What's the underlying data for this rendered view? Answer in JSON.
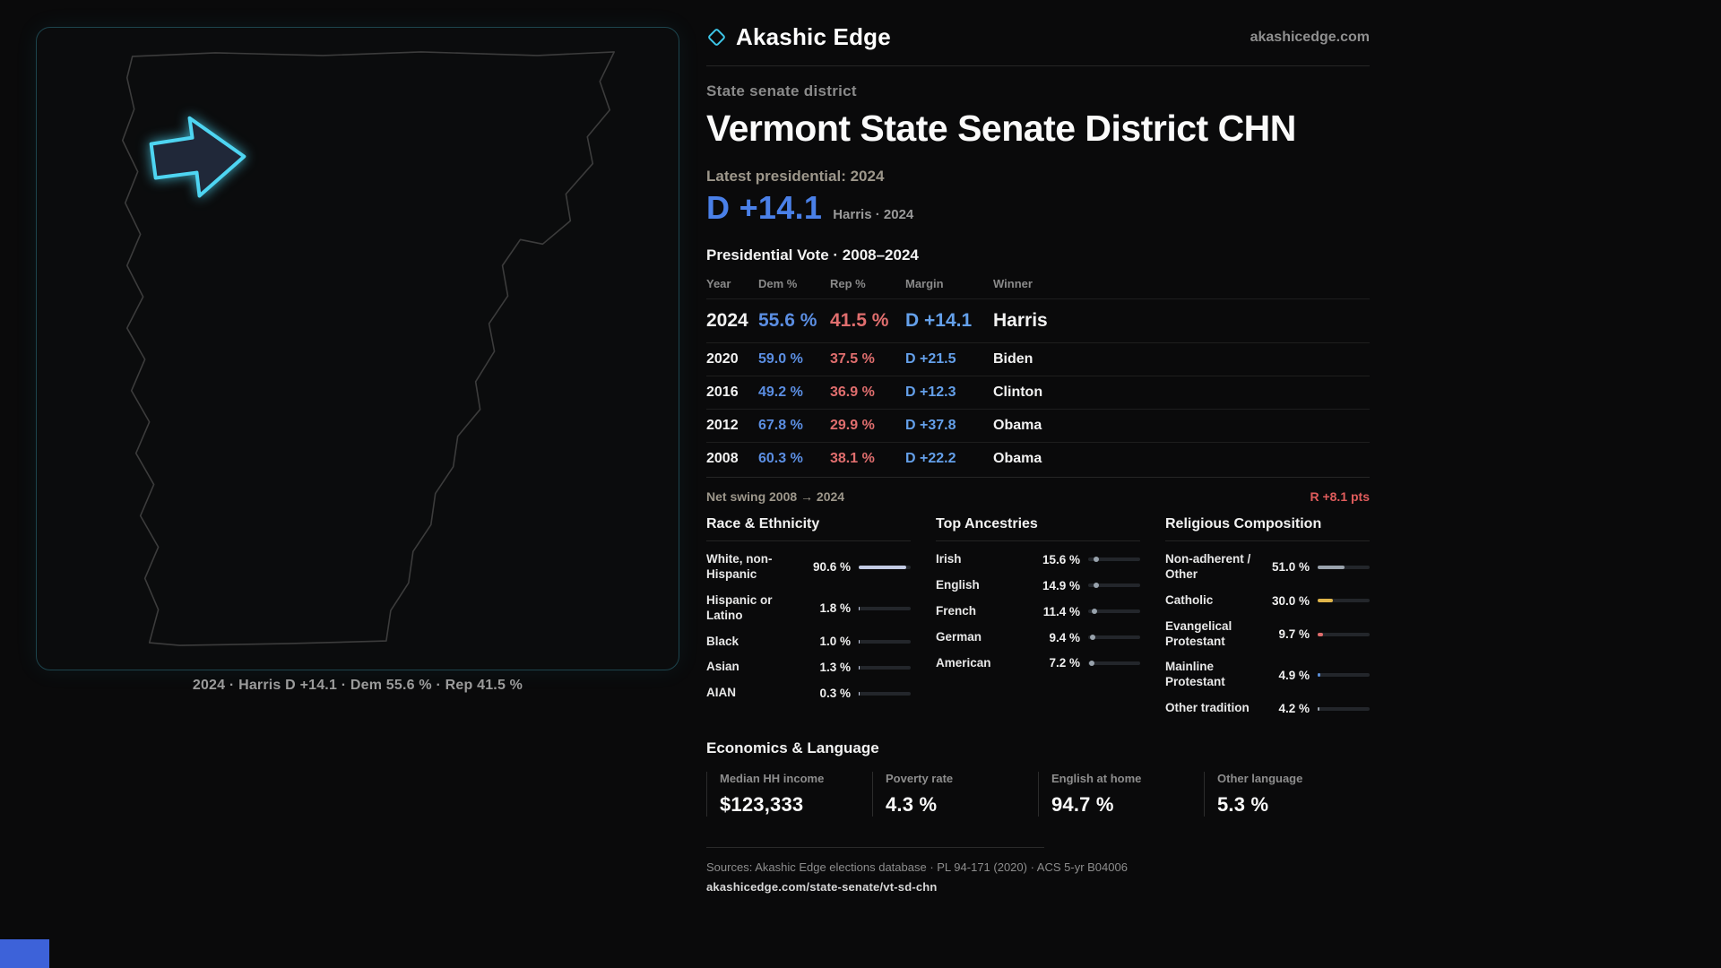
{
  "theme": {
    "accent_cyan": "#4ed5f2",
    "dem_blue": "#5b8ee2",
    "rep_red": "#e06e6e",
    "background": "#0a0a0b"
  },
  "header": {
    "brand": "Akashic Edge",
    "site": "akashicedge.com"
  },
  "hero": {
    "kicker": "State senate district",
    "title": "Vermont State Senate District CHN",
    "latest_label": "Latest presidential: 2024",
    "margin_value": "D +14.1",
    "margin_detail": "Harris · 2024"
  },
  "map": {
    "caption": "2024 · Harris D +14.1 · Dem 55.6 % · Rep 41.5 %"
  },
  "vote_table": {
    "title": "Presidential Vote · 2008–2024",
    "columns": [
      "Year",
      "Dem %",
      "Rep %",
      "Margin",
      "Winner"
    ],
    "rows": [
      {
        "year": "2024",
        "dem": "55.6 %",
        "rep": "41.5 %",
        "margin": "D +14.1",
        "winner": "Harris",
        "highlight": true
      },
      {
        "year": "2020",
        "dem": "59.0 %",
        "rep": "37.5 %",
        "margin": "D +21.5",
        "winner": "Biden",
        "highlight": false
      },
      {
        "year": "2016",
        "dem": "49.2 %",
        "rep": "36.9 %",
        "margin": "D +12.3",
        "winner": "Clinton",
        "highlight": false
      },
      {
        "year": "2012",
        "dem": "67.8 %",
        "rep": "29.9 %",
        "margin": "D +37.8",
        "winner": "Obama",
        "highlight": false
      },
      {
        "year": "2008",
        "dem": "60.3 %",
        "rep": "38.1 %",
        "margin": "D +22.2",
        "winner": "Obama",
        "highlight": false
      }
    ],
    "net_swing_label": "Net swing 2008 → 2024",
    "net_swing_value": "R +8.1 pts"
  },
  "demographics": {
    "race": {
      "title": "Race & Ethnicity",
      "bar_color": "#c3cbe4",
      "items": [
        {
          "label": "White, non-Hispanic",
          "value": "90.6 %",
          "pct": 90.6
        },
        {
          "label": "Hispanic or Latino",
          "value": "1.8 %",
          "pct": 1.8
        },
        {
          "label": "Black",
          "value": "1.0 %",
          "pct": 1.0
        },
        {
          "label": "Asian",
          "value": "1.3 %",
          "pct": 1.3
        },
        {
          "label": "AIAN",
          "value": "0.3 %",
          "pct": 0.3
        }
      ]
    },
    "ancestries": {
      "title": "Top Ancestries",
      "marker_color": "#98a2ac",
      "items": [
        {
          "label": "Irish",
          "value": "15.6 %",
          "pct": 15.6
        },
        {
          "label": "English",
          "value": "14.9 %",
          "pct": 14.9
        },
        {
          "label": "French",
          "value": "11.4 %",
          "pct": 11.4
        },
        {
          "label": "German",
          "value": "9.4 %",
          "pct": 9.4
        },
        {
          "label": "American",
          "value": "7.2 %",
          "pct": 7.2
        }
      ]
    },
    "religion": {
      "title": "Religious Composition",
      "bar_color": "#9aa3ad",
      "items": [
        {
          "label": "Non-adherent / Other",
          "value": "51.0 %",
          "pct": 51.0,
          "color": "#9aa3ad"
        },
        {
          "label": "Catholic",
          "value": "30.0 %",
          "pct": 30.0,
          "color": "#e0b54a"
        },
        {
          "label": "Evangelical Protestant",
          "value": "9.7 %",
          "pct": 9.7,
          "color": "#e06c6c"
        },
        {
          "label": "Mainline Protestant",
          "value": "4.9 %",
          "pct": 4.9,
          "color": "#5b8fd9"
        },
        {
          "label": "Other tradition",
          "value": "4.2 %",
          "pct": 4.2,
          "color": "#9aa3ad"
        }
      ]
    }
  },
  "economics": {
    "title": "Economics & Language",
    "stats": [
      {
        "label": "Median HH income",
        "value": "$123,333"
      },
      {
        "label": "Poverty rate",
        "value": "4.3 %"
      },
      {
        "label": "English at home",
        "value": "94.7 %"
      },
      {
        "label": "Other language",
        "value": "5.3 %"
      }
    ]
  },
  "footer": {
    "sources": "Sources: Akashic Edge elections database · PL 94-171 (2020) · ACS 5-yr B04006",
    "permalink": "akashicedge.com/state-senate/vt-sd-chn"
  }
}
